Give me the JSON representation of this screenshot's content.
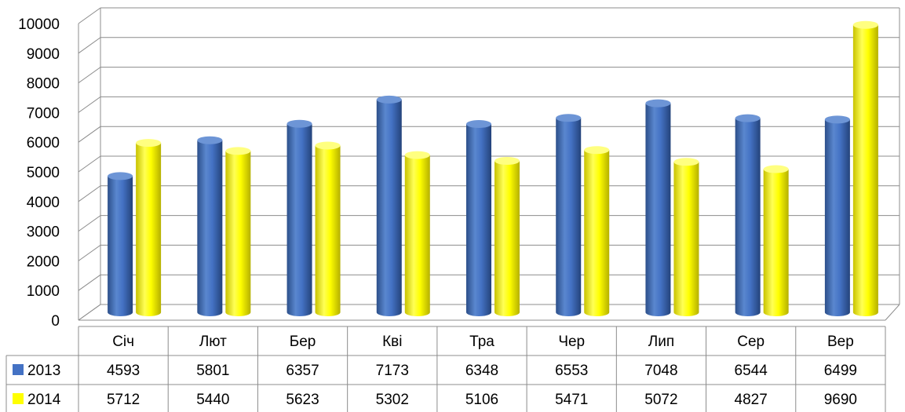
{
  "chart_data": {
    "type": "bar",
    "style": "3d-cylinder",
    "categories": [
      "Січ",
      "Лют",
      "Бер",
      "Кві",
      "Тра",
      "Чер",
      "Лип",
      "Сер",
      "Вер"
    ],
    "series": [
      {
        "name": "2013",
        "color": "#4472C4",
        "values": [
          4593,
          5801,
          6357,
          7173,
          6348,
          6553,
          7048,
          6544,
          6499
        ]
      },
      {
        "name": "2014",
        "color": "#FFFF00",
        "values": [
          5712,
          5440,
          5623,
          5302,
          5106,
          5471,
          5072,
          4827,
          9690
        ]
      }
    ],
    "ylim": [
      0,
      10000
    ],
    "yticks": [
      0,
      1000,
      2000,
      3000,
      4000,
      5000,
      6000,
      7000,
      8000,
      9000,
      10000
    ],
    "grid": true,
    "data_table": true,
    "legend": "data-table"
  }
}
